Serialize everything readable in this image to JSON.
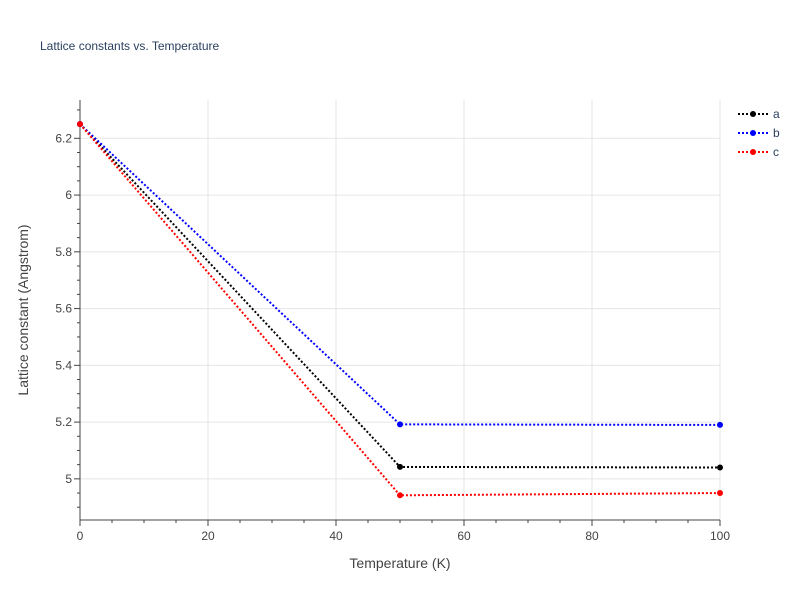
{
  "chart_data": {
    "type": "line",
    "title": "Lattice constants vs. Temperature",
    "xlabel": "Temperature (K)",
    "ylabel": "Lattice constant (Angstrom)",
    "xlim": [
      0,
      100
    ],
    "ylim": [
      4.855,
      6.335
    ],
    "x_ticks": [
      0,
      20,
      40,
      60,
      80,
      100
    ],
    "y_ticks": [
      5,
      5.2,
      5.4,
      5.6,
      5.8,
      6,
      6.2
    ],
    "x_tick_labels": [
      "0",
      "20",
      "40",
      "60",
      "80",
      "100"
    ],
    "y_tick_labels": [
      "5",
      "5.2",
      "5.4",
      "5.6",
      "5.8",
      "6",
      "6.2"
    ],
    "grid": true,
    "legend": "top-right",
    "x": [
      0,
      50,
      100
    ],
    "series": [
      {
        "name": "a",
        "color": "#000000",
        "values": [
          6.25,
          5.042,
          5.04
        ]
      },
      {
        "name": "b",
        "color": "#0000ff",
        "values": [
          6.25,
          5.192,
          5.19
        ]
      },
      {
        "name": "c",
        "color": "#ff0000",
        "values": [
          6.25,
          4.942,
          4.95
        ]
      }
    ]
  }
}
